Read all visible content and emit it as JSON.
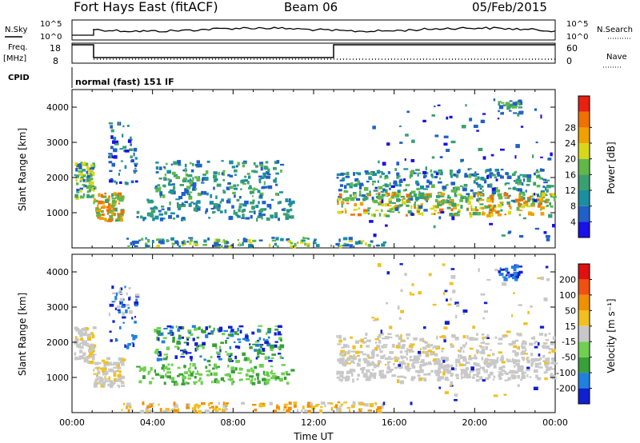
{
  "header": {
    "station": "Fort Hays East (fitACF)",
    "beam": "Beam 06",
    "date": "05/Feb/2015"
  },
  "strips": {
    "nsky_label": "N.Sky",
    "nsearch_label": "N.Search",
    "freq_label": "Freq.",
    "freq_unit": "[MHz]",
    "nave_label": "Nave",
    "cpid_label": "CPID",
    "cpid_value": "normal (fast) 151 IF",
    "noise_ticks": [
      "10^5",
      "10^0"
    ],
    "noise_right_ticks": [
      "10^5",
      "10^0"
    ],
    "freq_ticks": [
      "18",
      "8"
    ],
    "nave_ticks": [
      "60",
      "0"
    ]
  },
  "chart_data": [
    {
      "type": "heatmap",
      "name": "power",
      "ylabel": "Slant Range [km]",
      "xlabel": "",
      "ylim": [
        0,
        4500
      ],
      "yticks": [
        "1000",
        "2000",
        "3000",
        "4000"
      ],
      "colorbar_label": "Power [dB]",
      "colorbar_ticks": [
        "4",
        "8",
        "12",
        "16",
        "20",
        "24",
        "28"
      ],
      "colorbar_colors": [
        "#1a10e8",
        "#2060c8",
        "#1a8fa0",
        "#3aa070",
        "#60b848",
        "#d8d818",
        "#f0a000",
        "#f07000",
        "#e82010"
      ]
    },
    {
      "type": "heatmap",
      "name": "velocity",
      "ylabel": "Slant Range [km]",
      "xlabel": "Time UT",
      "ylim": [
        0,
        4500
      ],
      "yticks": [
        "1000",
        "2000",
        "3000",
        "4000"
      ],
      "xticks": [
        "00:00",
        "04:00",
        "08:00",
        "12:00",
        "16:00",
        "20:00",
        "00:00"
      ],
      "colorbar_label": "Velocity [m s⁻¹]",
      "colorbar_ticks": [
        "200",
        "100",
        "50",
        "15",
        "-15",
        "-50",
        "-100",
        "-200"
      ],
      "colorbar_colors": [
        "#1020d0",
        "#2080e0",
        "#38a038",
        "#70d050",
        "#c8c8c8",
        "#f0c020",
        "#f09000",
        "#f05010",
        "#e01010"
      ]
    }
  ],
  "colors": {
    "axis": "#000000",
    "frame": "#808080"
  }
}
